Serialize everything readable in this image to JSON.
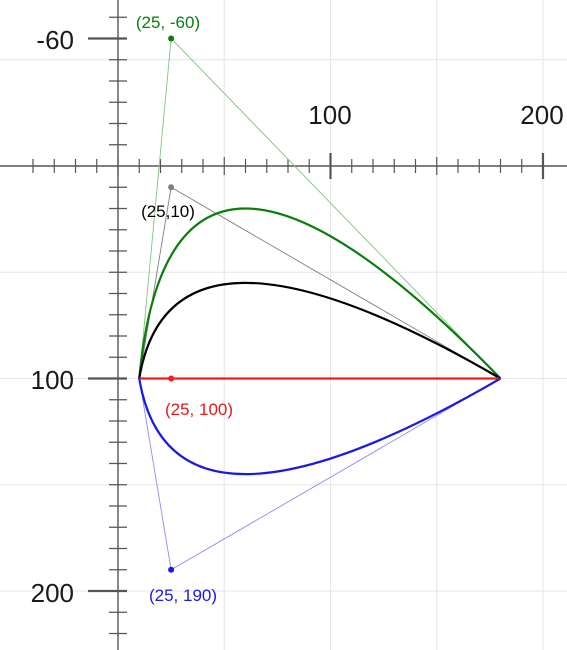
{
  "axes": {
    "x_ticks": [
      {
        "value": 100,
        "label": "100"
      },
      {
        "value": 200,
        "label": "200"
      }
    ],
    "y_ticks": [
      {
        "value": -60,
        "label": "-60"
      },
      {
        "value": 100,
        "label": "100"
      },
      {
        "value": 200,
        "label": "200"
      }
    ]
  },
  "start_point": [
    10,
    100
  ],
  "end_point": [
    180,
    100
  ],
  "curves": [
    {
      "name": "green",
      "color": "#0b7d0b",
      "control": [
        25,
        -60
      ],
      "label": "(25, -60)"
    },
    {
      "name": "gray",
      "color": "#000000",
      "polygon_color": "#808080",
      "control": [
        25,
        10
      ],
      "label": "(25,10)"
    },
    {
      "name": "red",
      "color": "#ff1a1a",
      "control": [
        25,
        100
      ],
      "label": "(25, 100)"
    },
    {
      "name": "blue",
      "color": "#1a1ae6",
      "control": [
        25,
        190
      ],
      "label": "(25, 190)"
    }
  ]
}
